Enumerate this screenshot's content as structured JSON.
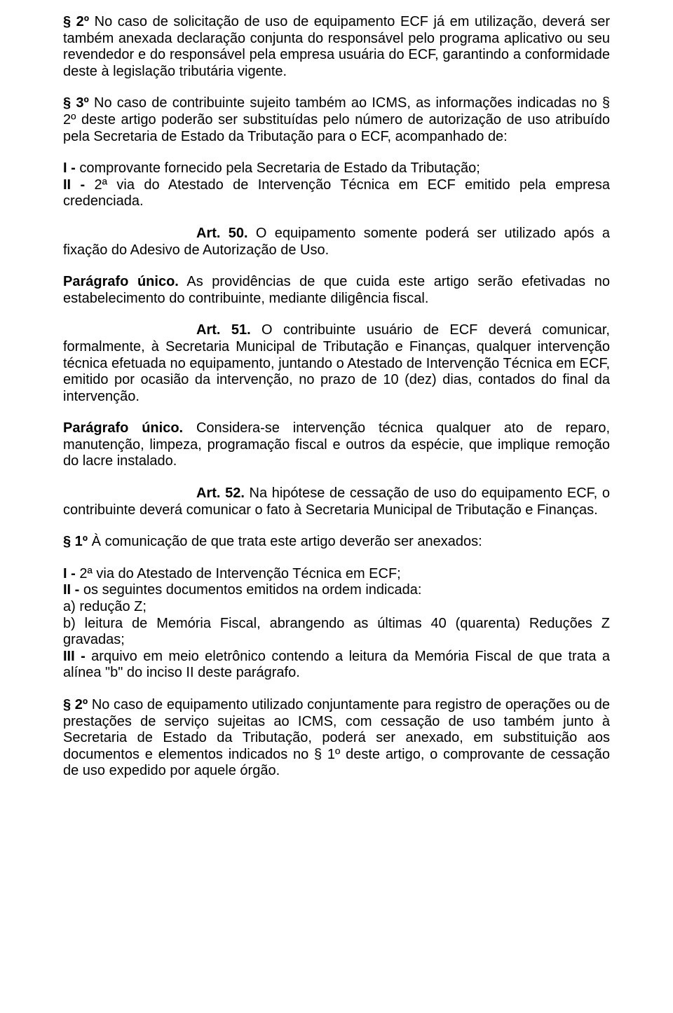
{
  "typography": {
    "font_family": "Arial",
    "base_font_size_pt": 15,
    "text_color": "#000000",
    "bg_color": "#ffffff",
    "line_height": 1.18
  },
  "p1": {
    "lead_bold": "§ 2º",
    "text": " No caso de solicitação de uso de equipamento ECF já em utilização, deverá ser também anexada declaração conjunta do responsável pelo programa aplicativo ou seu revendedor e do responsável pela empresa usuária do ECF, garantindo a conformidade deste à legislação tributária vigente."
  },
  "p2": {
    "lead_bold": "§ 3º",
    "text": " No caso de contribuinte sujeito também ao ICMS, as informações indicadas no § 2º deste artigo poderão ser substituídas pelo número de autorização de uso atribuído pela Secretaria de Estado da Tributação para o ECF, acompanhado de:"
  },
  "p3": {
    "line1_bold": "I -",
    "line1_text": " comprovante fornecido pela Secretaria de Estado da Tributação;",
    "line2_bold": "II -",
    "line2_text": " 2ª via do Atestado de Intervenção Técnica em ECF emitido pela empresa credenciada."
  },
  "art50": {
    "lead_bold": "Art. 50.",
    "text": " O equipamento somente poderá ser utilizado após a fixação do Adesivo de Autorização de Uso."
  },
  "pu1": {
    "lead_bold": "Parágrafo único.",
    "text": " As providências de que cuida este artigo serão efetivadas no estabelecimento do contribuinte, mediante diligência fiscal."
  },
  "art51": {
    "lead_bold": "Art. 51.",
    "text": " O contribuinte usuário de ECF deverá comunicar, formalmente, à Secretaria Municipal de Tributação e Finanças, qualquer intervenção técnica efetuada no equipamento, juntando o Atestado de Intervenção Técnica em ECF, emitido por ocasião da intervenção, no prazo de 10 (dez) dias, contados do final da intervenção."
  },
  "pu2": {
    "lead_bold": "Parágrafo único.",
    "text": " Considera-se intervenção técnica qualquer ato de reparo, manutenção, limpeza, programação fiscal e outros da espécie, que implique remoção do lacre instalado."
  },
  "art52": {
    "lead_bold": "Art. 52.",
    "text": " Na hipótese de cessação de uso do equipamento ECF, o contribuinte deverá comunicar o fato à Secretaria Municipal de Tributação e Finanças."
  },
  "p_s1": {
    "lead_bold": "§ 1º",
    "text": " À comunicação de que trata este artigo deverão ser anexados:"
  },
  "list": {
    "i_bold": "I -",
    "i_text": " 2ª via do Atestado de Intervenção Técnica em ECF;",
    "ii_bold": "II -",
    "ii_text": " os seguintes documentos emitidos na ordem indicada:",
    "a_text": "a) redução Z;",
    "b_text": "b) leitura de Memória Fiscal, abrangendo as últimas 40 (quarenta) Reduções Z gravadas;",
    "iii_bold": "III -",
    "iii_text": " arquivo em meio eletrônico contendo a leitura da Memória Fiscal de que trata a alínea \"b\" do inciso II deste parágrafo."
  },
  "p_s2": {
    "lead_bold": "§ 2º",
    "text": " No caso de equipamento utilizado conjuntamente para registro de operações ou de prestações de serviço sujeitas ao ICMS, com cessação de uso também junto à Secretaria de Estado da Tributação, poderá ser anexado, em substituição aos documentos e elementos indicados no § 1º deste artigo, o comprovante de cessação de uso expedido por aquele órgão."
  }
}
